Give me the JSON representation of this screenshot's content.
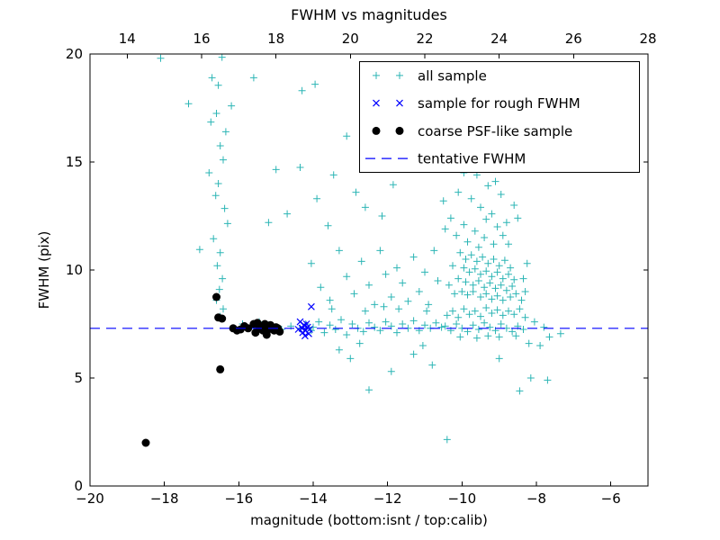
{
  "chart_data": {
    "type": "scatter",
    "title": "FWHM vs magnitudes",
    "xlabel": "magnitude (bottom:isnt / top:calib)",
    "ylabel": "FWHM (pix)",
    "xlim": [
      -20,
      -5
    ],
    "ylim": [
      0,
      20
    ],
    "x_ticks_bottom": [
      -20,
      -18,
      -16,
      -14,
      -12,
      -10,
      -8,
      -6
    ],
    "x_axis_top": {
      "lim": [
        13,
        28
      ],
      "ticks": [
        14,
        16,
        18,
        20,
        22,
        24,
        26,
        28
      ]
    },
    "y_ticks": [
      0,
      5,
      10,
      15,
      20
    ],
    "grid": false,
    "legend_position": "upper right",
    "tentative_fwhm": 7.3,
    "series": [
      {
        "name": "all sample",
        "kind": "scatter",
        "marker": "plus",
        "color": "#2cb5b5",
        "points": [
          [
            -16.45,
            19.85
          ],
          [
            -16.72,
            18.9
          ],
          [
            -16.55,
            18.55
          ],
          [
            -16.2,
            17.6
          ],
          [
            -16.6,
            17.25
          ],
          [
            -16.75,
            16.85
          ],
          [
            -16.35,
            16.4
          ],
          [
            -16.5,
            15.75
          ],
          [
            -16.42,
            15.1
          ],
          [
            -16.8,
            14.5
          ],
          [
            -16.55,
            14.0
          ],
          [
            -16.62,
            13.45
          ],
          [
            -16.38,
            12.85
          ],
          [
            -16.3,
            12.15
          ],
          [
            -16.68,
            11.45
          ],
          [
            -16.5,
            10.8
          ],
          [
            -16.58,
            10.2
          ],
          [
            -16.44,
            9.6
          ],
          [
            -16.52,
            9.1
          ],
          [
            -16.6,
            8.6
          ],
          [
            -16.42,
            8.2
          ],
          [
            -16.5,
            7.85
          ],
          [
            -17.05,
            10.95
          ],
          [
            -17.35,
            17.7
          ],
          [
            -18.1,
            19.8
          ],
          [
            -15.6,
            18.9
          ],
          [
            -13.95,
            18.6
          ],
          [
            -14.3,
            18.3
          ],
          [
            -15.0,
            14.65
          ],
          [
            -14.35,
            14.75
          ],
          [
            -13.45,
            14.4
          ],
          [
            -13.9,
            13.3
          ],
          [
            -15.2,
            12.2
          ],
          [
            -14.7,
            12.6
          ],
          [
            -13.6,
            12.05
          ],
          [
            -12.85,
            13.6
          ],
          [
            -12.4,
            14.9
          ],
          [
            -12.15,
            12.5
          ],
          [
            -11.85,
            13.95
          ],
          [
            -12.6,
            12.9
          ],
          [
            -13.1,
            16.2
          ],
          [
            -14.05,
            10.3
          ],
          [
            -13.8,
            9.2
          ],
          [
            -13.55,
            8.6
          ],
          [
            -13.3,
            10.9
          ],
          [
            -13.1,
            9.7
          ],
          [
            -12.9,
            8.9
          ],
          [
            -12.7,
            10.4
          ],
          [
            -12.5,
            9.3
          ],
          [
            -12.35,
            8.4
          ],
          [
            -12.2,
            10.9
          ],
          [
            -12.05,
            9.8
          ],
          [
            -11.9,
            8.75
          ],
          [
            -11.75,
            10.1
          ],
          [
            -11.6,
            9.4
          ],
          [
            -11.45,
            8.55
          ],
          [
            -11.3,
            10.6
          ],
          [
            -11.15,
            9.0
          ],
          [
            -11.0,
            9.9
          ],
          [
            -10.9,
            8.4
          ],
          [
            -10.75,
            10.9
          ],
          [
            -10.65,
            9.5
          ],
          [
            -14.0,
            7.35
          ],
          [
            -13.85,
            7.6
          ],
          [
            -13.7,
            7.1
          ],
          [
            -13.55,
            7.45
          ],
          [
            -13.4,
            7.25
          ],
          [
            -13.25,
            7.7
          ],
          [
            -13.1,
            7.0
          ],
          [
            -12.95,
            7.5
          ],
          [
            -12.8,
            7.3
          ],
          [
            -12.65,
            7.15
          ],
          [
            -12.5,
            7.55
          ],
          [
            -12.35,
            7.35
          ],
          [
            -12.2,
            7.2
          ],
          [
            -12.05,
            7.6
          ],
          [
            -11.9,
            7.4
          ],
          [
            -11.75,
            7.1
          ],
          [
            -11.6,
            7.5
          ],
          [
            -11.45,
            7.3
          ],
          [
            -11.3,
            7.65
          ],
          [
            -11.15,
            7.2
          ],
          [
            -11.0,
            7.45
          ],
          [
            -10.85,
            7.3
          ],
          [
            -10.7,
            7.55
          ],
          [
            -10.55,
            7.35
          ],
          [
            -13.5,
            8.2
          ],
          [
            -12.6,
            8.1
          ],
          [
            -11.7,
            8.2
          ],
          [
            -10.95,
            8.1
          ],
          [
            -12.1,
            8.3
          ],
          [
            -13.3,
            6.3
          ],
          [
            -13.0,
            5.9
          ],
          [
            -12.5,
            4.45
          ],
          [
            -11.9,
            5.3
          ],
          [
            -11.3,
            6.1
          ],
          [
            -10.8,
            5.6
          ],
          [
            -12.75,
            6.6
          ],
          [
            -11.05,
            6.5
          ],
          [
            -15.9,
            7.5
          ],
          [
            -15.6,
            7.3
          ],
          [
            -15.2,
            7.45
          ],
          [
            -14.85,
            7.25
          ],
          [
            -14.6,
            7.4
          ],
          [
            -14.35,
            7.3
          ],
          [
            -14.2,
            7.5
          ],
          [
            -15.45,
            7.6
          ],
          [
            -14.05,
            7.2
          ],
          [
            -10.35,
            14.7
          ],
          [
            -9.95,
            14.5
          ],
          [
            -9.6,
            14.4
          ],
          [
            -9.3,
            13.9
          ],
          [
            -10.1,
            13.6
          ],
          [
            -9.75,
            13.3
          ],
          [
            -9.5,
            12.9
          ],
          [
            -9.2,
            12.6
          ],
          [
            -10.3,
            12.4
          ],
          [
            -9.95,
            12.1
          ],
          [
            -9.65,
            11.8
          ],
          [
            -9.4,
            11.5
          ],
          [
            -9.15,
            11.2
          ],
          [
            -10.15,
            11.6
          ],
          [
            -9.85,
            11.3
          ],
          [
            -9.55,
            11.05
          ],
          [
            -8.95,
            13.5
          ],
          [
            -8.8,
            12.2
          ],
          [
            -9.05,
            12.0
          ],
          [
            -8.9,
            11.6
          ],
          [
            -10.5,
            13.2
          ],
          [
            -10.45,
            11.9
          ],
          [
            -9.1,
            14.1
          ],
          [
            -8.75,
            11.2
          ],
          [
            -9.35,
            12.35
          ],
          [
            -10.05,
            10.8
          ],
          [
            -9.9,
            10.5
          ],
          [
            -9.75,
            10.7
          ],
          [
            -9.6,
            10.4
          ],
          [
            -9.45,
            10.6
          ],
          [
            -9.3,
            10.3
          ],
          [
            -9.15,
            10.5
          ],
          [
            -9.0,
            10.2
          ],
          [
            -8.85,
            10.45
          ],
          [
            -8.7,
            10.1
          ],
          [
            -9.95,
            10.1
          ],
          [
            -9.8,
            9.9
          ],
          [
            -9.65,
            10.05
          ],
          [
            -9.5,
            9.8
          ],
          [
            -9.35,
            9.95
          ],
          [
            -9.2,
            9.7
          ],
          [
            -9.05,
            9.9
          ],
          [
            -8.9,
            9.6
          ],
          [
            -8.75,
            9.8
          ],
          [
            -8.6,
            9.55
          ],
          [
            -10.1,
            9.6
          ],
          [
            -9.9,
            9.45
          ],
          [
            -9.7,
            9.3
          ],
          [
            -9.55,
            9.5
          ],
          [
            -9.4,
            9.2
          ],
          [
            -9.25,
            9.4
          ],
          [
            -9.1,
            9.15
          ],
          [
            -8.95,
            9.3
          ],
          [
            -8.8,
            9.05
          ],
          [
            -8.65,
            9.25
          ],
          [
            -10.0,
            9.0
          ],
          [
            -9.85,
            8.85
          ],
          [
            -9.7,
            9.0
          ],
          [
            -9.5,
            8.75
          ],
          [
            -9.35,
            8.9
          ],
          [
            -9.2,
            8.65
          ],
          [
            -9.05,
            8.8
          ],
          [
            -8.9,
            8.6
          ],
          [
            -8.7,
            8.75
          ],
          [
            -8.55,
            8.9
          ],
          [
            -10.2,
            8.9
          ],
          [
            -10.35,
            9.3
          ],
          [
            -10.25,
            10.2
          ],
          [
            -10.45,
            7.4
          ],
          [
            -10.3,
            7.2
          ],
          [
            -10.15,
            7.5
          ],
          [
            -10.0,
            7.3
          ],
          [
            -9.85,
            7.15
          ],
          [
            -9.7,
            7.45
          ],
          [
            -9.55,
            7.25
          ],
          [
            -9.4,
            7.55
          ],
          [
            -9.25,
            7.35
          ],
          [
            -9.1,
            7.2
          ],
          [
            -8.95,
            7.5
          ],
          [
            -8.8,
            7.3
          ],
          [
            -8.65,
            7.15
          ],
          [
            -8.5,
            7.4
          ],
          [
            -8.35,
            7.25
          ],
          [
            -10.4,
            7.9
          ],
          [
            -10.25,
            8.1
          ],
          [
            -10.1,
            7.8
          ],
          [
            -9.95,
            8.2
          ],
          [
            -9.8,
            7.95
          ],
          [
            -9.65,
            8.1
          ],
          [
            -9.5,
            7.85
          ],
          [
            -9.35,
            8.25
          ],
          [
            -9.2,
            8.0
          ],
          [
            -9.05,
            8.15
          ],
          [
            -8.9,
            7.9
          ],
          [
            -8.75,
            8.1
          ],
          [
            -8.6,
            7.95
          ],
          [
            -8.45,
            8.2
          ],
          [
            -8.3,
            7.8
          ],
          [
            -9.3,
            6.95
          ],
          [
            -9.6,
            6.85
          ],
          [
            -9.0,
            6.9
          ],
          [
            -8.55,
            6.95
          ],
          [
            -10.05,
            6.9
          ],
          [
            -8.35,
            9.6
          ],
          [
            -8.25,
            10.3
          ],
          [
            -8.4,
            8.6
          ],
          [
            -8.3,
            9.0
          ],
          [
            -8.6,
            13.0
          ],
          [
            -8.5,
            12.4
          ],
          [
            -9.0,
            5.9
          ],
          [
            -8.45,
            4.4
          ],
          [
            -8.15,
            5.0
          ],
          [
            -10.4,
            2.15
          ],
          [
            -7.9,
            6.5
          ],
          [
            -7.65,
            6.9
          ],
          [
            -7.8,
            7.35
          ],
          [
            -8.05,
            7.6
          ],
          [
            -8.2,
            6.6
          ],
          [
            -7.7,
            4.9
          ],
          [
            -7.35,
            7.05
          ]
        ]
      },
      {
        "name": "sample for rough FWHM",
        "kind": "scatter",
        "marker": "x",
        "color": "#0000ff",
        "points": [
          [
            -14.35,
            7.6
          ],
          [
            -14.3,
            7.3
          ],
          [
            -14.25,
            7.45
          ],
          [
            -14.2,
            7.2
          ],
          [
            -14.15,
            7.35
          ],
          [
            -14.28,
            7.1
          ],
          [
            -14.22,
            6.95
          ],
          [
            -14.1,
            7.25
          ],
          [
            -14.05,
            8.3
          ],
          [
            -14.18,
            7.5
          ],
          [
            -14.12,
            7.05
          ],
          [
            -14.4,
            7.25
          ]
        ]
      },
      {
        "name": "coarse PSF-like sample",
        "kind": "scatter",
        "marker": "circle",
        "color": "#000000",
        "points": [
          [
            -18.5,
            2.0
          ],
          [
            -16.6,
            8.75
          ],
          [
            -16.55,
            7.8
          ],
          [
            -16.45,
            7.75
          ],
          [
            -16.5,
            5.4
          ],
          [
            -16.15,
            7.3
          ],
          [
            -16.05,
            7.2
          ],
          [
            -15.95,
            7.25
          ],
          [
            -15.85,
            7.4
          ],
          [
            -15.75,
            7.3
          ],
          [
            -15.6,
            7.5
          ],
          [
            -15.5,
            7.55
          ],
          [
            -15.45,
            7.3
          ],
          [
            -15.35,
            7.2
          ],
          [
            -15.3,
            7.5
          ],
          [
            -15.2,
            7.25
          ],
          [
            -15.15,
            7.45
          ],
          [
            -15.05,
            7.2
          ],
          [
            -15.0,
            7.35
          ],
          [
            -14.95,
            7.3
          ],
          [
            -15.55,
            7.1
          ],
          [
            -15.25,
            7.0
          ],
          [
            -14.9,
            7.15
          ]
        ]
      },
      {
        "name": "tentative FWHM",
        "kind": "hline",
        "style": "dashed",
        "color": "#0000ff",
        "y": 7.3
      }
    ]
  }
}
